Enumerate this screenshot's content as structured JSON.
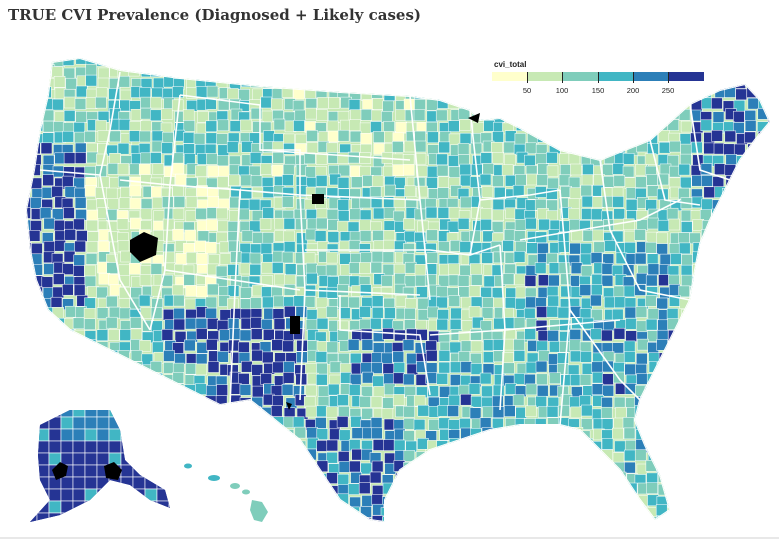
{
  "title": "TRUE CVI Prevalence (Diagnosed + Likely cases)",
  "legend": {
    "variable": "cvi_total",
    "ticks": [
      "50",
      "100",
      "150",
      "200",
      "250"
    ],
    "colors": [
      "#ffffcc",
      "#c7e9b4",
      "#7fcdbb",
      "#41b6c4",
      "#2c7fb8",
      "#253494"
    ]
  },
  "map": {
    "border_color": "#ffffff",
    "state_border_color": "#ffffff",
    "missing_color": "#000000"
  }
}
